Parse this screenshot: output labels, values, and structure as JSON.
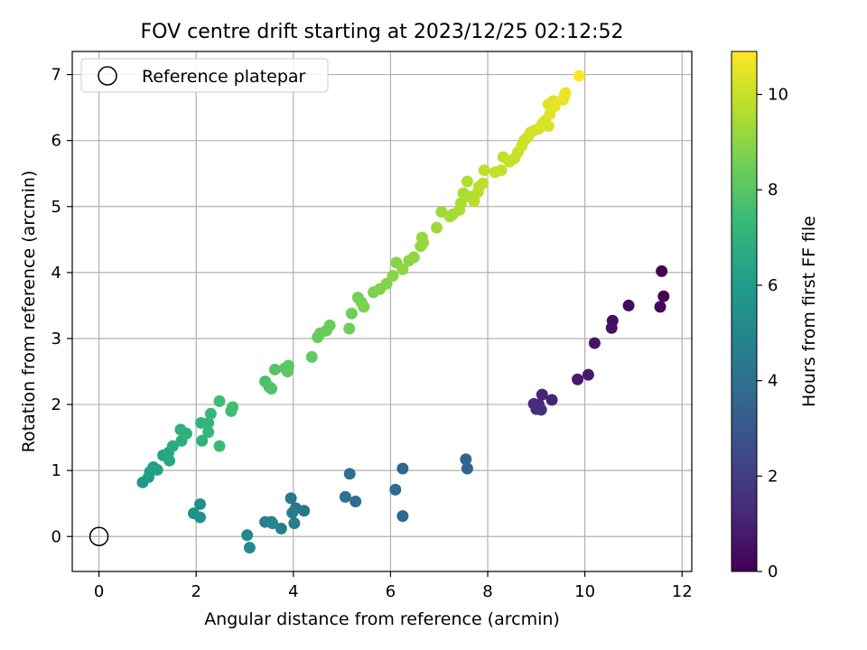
{
  "chart_data": {
    "type": "scatter",
    "title": "FOV centre drift starting at 2023/12/25 02:12:52",
    "xlabel": "Angular distance from reference (arcmin)",
    "ylabel": "Rotation from reference (arcmin)",
    "xlim": [
      -0.55,
      12.2
    ],
    "ylim": [
      -0.53,
      7.35
    ],
    "xticks": [
      0,
      2,
      4,
      6,
      8,
      10,
      12
    ],
    "yticks": [
      0,
      1,
      2,
      3,
      4,
      5,
      6,
      7
    ],
    "grid": true,
    "legend": {
      "placement": "top-left",
      "entries": [
        "Reference platepar"
      ]
    },
    "reference_point": {
      "x": 0,
      "y": 0,
      "label": "Reference platepar"
    },
    "colorbar": {
      "label": "Hours from first FF file",
      "range": [
        0,
        10.9
      ],
      "ticks": [
        0,
        2,
        4,
        6,
        8,
        10
      ],
      "colormap": "viridis"
    },
    "colormap_stops": [
      "#440154",
      "#482878",
      "#3e4989",
      "#31688e",
      "#26828e",
      "#1f9e89",
      "#35b779",
      "#6ece58",
      "#b5de2b",
      "#fde725"
    ],
    "series": [
      {
        "color_value": "hours",
        "points": [
          {
            "x": 11.58,
            "y": 4.02,
            "c": 0.0
          },
          {
            "x": 11.62,
            "y": 3.64,
            "c": 0.1
          },
          {
            "x": 11.55,
            "y": 3.48,
            "c": 0.2
          },
          {
            "x": 10.9,
            "y": 3.5,
            "c": 0.3
          },
          {
            "x": 10.57,
            "y": 3.27,
            "c": 0.4
          },
          {
            "x": 10.55,
            "y": 3.16,
            "c": 0.5
          },
          {
            "x": 10.2,
            "y": 2.93,
            "c": 0.6
          },
          {
            "x": 10.07,
            "y": 2.45,
            "c": 0.7
          },
          {
            "x": 9.85,
            "y": 2.38,
            "c": 0.8
          },
          {
            "x": 9.32,
            "y": 2.07,
            "c": 1.0
          },
          {
            "x": 9.12,
            "y": 2.15,
            "c": 1.1
          },
          {
            "x": 9.05,
            "y": 2.0,
            "c": 1.2
          },
          {
            "x": 8.95,
            "y": 2.01,
            "c": 1.3
          },
          {
            "x": 9.0,
            "y": 1.93,
            "c": 1.4
          },
          {
            "x": 9.1,
            "y": 1.92,
            "c": 1.5
          },
          {
            "x": 7.58,
            "y": 1.03,
            "c": 3.4
          },
          {
            "x": 7.55,
            "y": 1.17,
            "c": 3.5
          },
          {
            "x": 6.25,
            "y": 1.03,
            "c": 3.6
          },
          {
            "x": 6.25,
            "y": 0.31,
            "c": 3.7
          },
          {
            "x": 6.1,
            "y": 0.71,
            "c": 3.8
          },
          {
            "x": 5.28,
            "y": 0.53,
            "c": 3.9
          },
          {
            "x": 5.16,
            "y": 0.95,
            "c": 4.0
          },
          {
            "x": 5.07,
            "y": 0.6,
            "c": 4.1
          },
          {
            "x": 4.22,
            "y": 0.39,
            "c": 4.2
          },
          {
            "x": 4.05,
            "y": 0.43,
            "c": 4.3
          },
          {
            "x": 3.95,
            "y": 0.58,
            "c": 4.4
          },
          {
            "x": 3.98,
            "y": 0.36,
            "c": 4.5
          },
          {
            "x": 4.02,
            "y": 0.2,
            "c": 4.6
          },
          {
            "x": 3.75,
            "y": 0.12,
            "c": 4.7
          },
          {
            "x": 3.55,
            "y": 0.22,
            "c": 4.8
          },
          {
            "x": 3.42,
            "y": 0.22,
            "c": 4.9
          },
          {
            "x": 3.57,
            "y": 0.2,
            "c": 5.0
          },
          {
            "x": 3.05,
            "y": 0.02,
            "c": 5.1
          },
          {
            "x": 3.1,
            "y": -0.17,
            "c": 5.2
          },
          {
            "x": 2.08,
            "y": 0.49,
            "c": 5.4
          },
          {
            "x": 1.95,
            "y": 0.35,
            "c": 5.5
          },
          {
            "x": 2.08,
            "y": 0.29,
            "c": 5.6
          },
          {
            "x": 0.9,
            "y": 0.82,
            "c": 5.9
          },
          {
            "x": 1.02,
            "y": 0.9,
            "c": 6.0
          },
          {
            "x": 1.05,
            "y": 0.98,
            "c": 6.1
          },
          {
            "x": 1.12,
            "y": 1.05,
            "c": 6.2
          },
          {
            "x": 1.2,
            "y": 1.01,
            "c": 6.3
          },
          {
            "x": 1.32,
            "y": 1.23,
            "c": 6.4
          },
          {
            "x": 1.45,
            "y": 1.15,
            "c": 6.5
          },
          {
            "x": 1.43,
            "y": 1.27,
            "c": 6.6
          },
          {
            "x": 1.52,
            "y": 1.37,
            "c": 6.7
          },
          {
            "x": 1.7,
            "y": 1.45,
            "c": 6.8
          },
          {
            "x": 1.68,
            "y": 1.62,
            "c": 6.9
          },
          {
            "x": 1.8,
            "y": 1.56,
            "c": 7.0
          },
          {
            "x": 2.12,
            "y": 1.45,
            "c": 7.0
          },
          {
            "x": 2.1,
            "y": 1.72,
            "c": 7.1
          },
          {
            "x": 2.25,
            "y": 1.72,
            "c": 7.2
          },
          {
            "x": 2.25,
            "y": 1.58,
            "c": 7.2
          },
          {
            "x": 2.3,
            "y": 1.86,
            "c": 7.3
          },
          {
            "x": 2.48,
            "y": 1.37,
            "c": 7.4
          },
          {
            "x": 2.48,
            "y": 2.05,
            "c": 7.5
          },
          {
            "x": 2.72,
            "y": 1.9,
            "c": 7.5
          },
          {
            "x": 2.75,
            "y": 1.96,
            "c": 7.6
          },
          {
            "x": 3.42,
            "y": 2.35,
            "c": 7.7
          },
          {
            "x": 3.5,
            "y": 2.27,
            "c": 7.8
          },
          {
            "x": 3.55,
            "y": 2.24,
            "c": 7.9
          },
          {
            "x": 3.62,
            "y": 2.53,
            "c": 8.0
          },
          {
            "x": 3.83,
            "y": 2.55,
            "c": 8.0
          },
          {
            "x": 3.88,
            "y": 2.5,
            "c": 8.1
          },
          {
            "x": 3.9,
            "y": 2.59,
            "c": 8.1
          },
          {
            "x": 4.38,
            "y": 2.72,
            "c": 8.2
          },
          {
            "x": 4.5,
            "y": 3.02,
            "c": 8.3
          },
          {
            "x": 4.55,
            "y": 3.08,
            "c": 8.3
          },
          {
            "x": 4.68,
            "y": 3.12,
            "c": 8.4
          },
          {
            "x": 4.75,
            "y": 3.2,
            "c": 8.4
          },
          {
            "x": 5.15,
            "y": 3.15,
            "c": 8.5
          },
          {
            "x": 5.2,
            "y": 3.38,
            "c": 8.5
          },
          {
            "x": 5.33,
            "y": 3.62,
            "c": 8.6
          },
          {
            "x": 5.4,
            "y": 3.55,
            "c": 8.6
          },
          {
            "x": 5.45,
            "y": 3.48,
            "c": 8.7
          },
          {
            "x": 5.65,
            "y": 3.7,
            "c": 8.7
          },
          {
            "x": 5.78,
            "y": 3.75,
            "c": 8.8
          },
          {
            "x": 5.92,
            "y": 3.83,
            "c": 8.8
          },
          {
            "x": 6.05,
            "y": 3.95,
            "c": 8.9
          },
          {
            "x": 6.12,
            "y": 4.15,
            "c": 8.9
          },
          {
            "x": 6.25,
            "y": 4.05,
            "c": 9.0
          },
          {
            "x": 6.38,
            "y": 4.18,
            "c": 9.0
          },
          {
            "x": 6.48,
            "y": 4.23,
            "c": 9.1
          },
          {
            "x": 6.62,
            "y": 4.4,
            "c": 9.1
          },
          {
            "x": 6.65,
            "y": 4.53,
            "c": 9.2
          },
          {
            "x": 6.67,
            "y": 4.45,
            "c": 9.2
          },
          {
            "x": 6.95,
            "y": 4.68,
            "c": 9.3
          },
          {
            "x": 7.05,
            "y": 4.92,
            "c": 9.3
          },
          {
            "x": 7.22,
            "y": 4.85,
            "c": 9.4
          },
          {
            "x": 7.28,
            "y": 4.88,
            "c": 9.4
          },
          {
            "x": 7.42,
            "y": 4.95,
            "c": 9.5
          },
          {
            "x": 7.45,
            "y": 5.05,
            "c": 9.5
          },
          {
            "x": 7.5,
            "y": 5.2,
            "c": 9.5
          },
          {
            "x": 7.58,
            "y": 5.38,
            "c": 9.6
          },
          {
            "x": 7.62,
            "y": 5.15,
            "c": 9.6
          },
          {
            "x": 7.72,
            "y": 5.08,
            "c": 9.7
          },
          {
            "x": 7.8,
            "y": 5.22,
            "c": 9.7
          },
          {
            "x": 7.82,
            "y": 5.3,
            "c": 9.7
          },
          {
            "x": 7.9,
            "y": 5.35,
            "c": 9.8
          },
          {
            "x": 7.93,
            "y": 5.55,
            "c": 9.8
          },
          {
            "x": 8.15,
            "y": 5.52,
            "c": 9.9
          },
          {
            "x": 8.28,
            "y": 5.55,
            "c": 9.9
          },
          {
            "x": 8.32,
            "y": 5.75,
            "c": 9.9
          },
          {
            "x": 8.45,
            "y": 5.68,
            "c": 10.0
          },
          {
            "x": 8.55,
            "y": 5.73,
            "c": 10.0
          },
          {
            "x": 8.62,
            "y": 5.82,
            "c": 10.0
          },
          {
            "x": 8.7,
            "y": 5.92,
            "c": 10.1
          },
          {
            "x": 8.75,
            "y": 6.0,
            "c": 10.1
          },
          {
            "x": 8.82,
            "y": 6.05,
            "c": 10.1
          },
          {
            "x": 8.88,
            "y": 6.12,
            "c": 10.2
          },
          {
            "x": 8.95,
            "y": 6.15,
            "c": 10.2
          },
          {
            "x": 9.05,
            "y": 6.18,
            "c": 10.2
          },
          {
            "x": 9.12,
            "y": 6.25,
            "c": 10.3
          },
          {
            "x": 9.18,
            "y": 6.3,
            "c": 10.3
          },
          {
            "x": 9.25,
            "y": 6.22,
            "c": 10.3
          },
          {
            "x": 9.28,
            "y": 6.4,
            "c": 10.4
          },
          {
            "x": 9.25,
            "y": 6.55,
            "c": 10.4
          },
          {
            "x": 9.35,
            "y": 6.6,
            "c": 10.4
          },
          {
            "x": 9.38,
            "y": 6.52,
            "c": 10.5
          },
          {
            "x": 9.55,
            "y": 6.62,
            "c": 10.5
          },
          {
            "x": 9.58,
            "y": 6.68,
            "c": 10.6
          },
          {
            "x": 9.6,
            "y": 6.72,
            "c": 10.6
          },
          {
            "x": 9.88,
            "y": 6.98,
            "c": 10.9
          }
        ]
      }
    ]
  }
}
